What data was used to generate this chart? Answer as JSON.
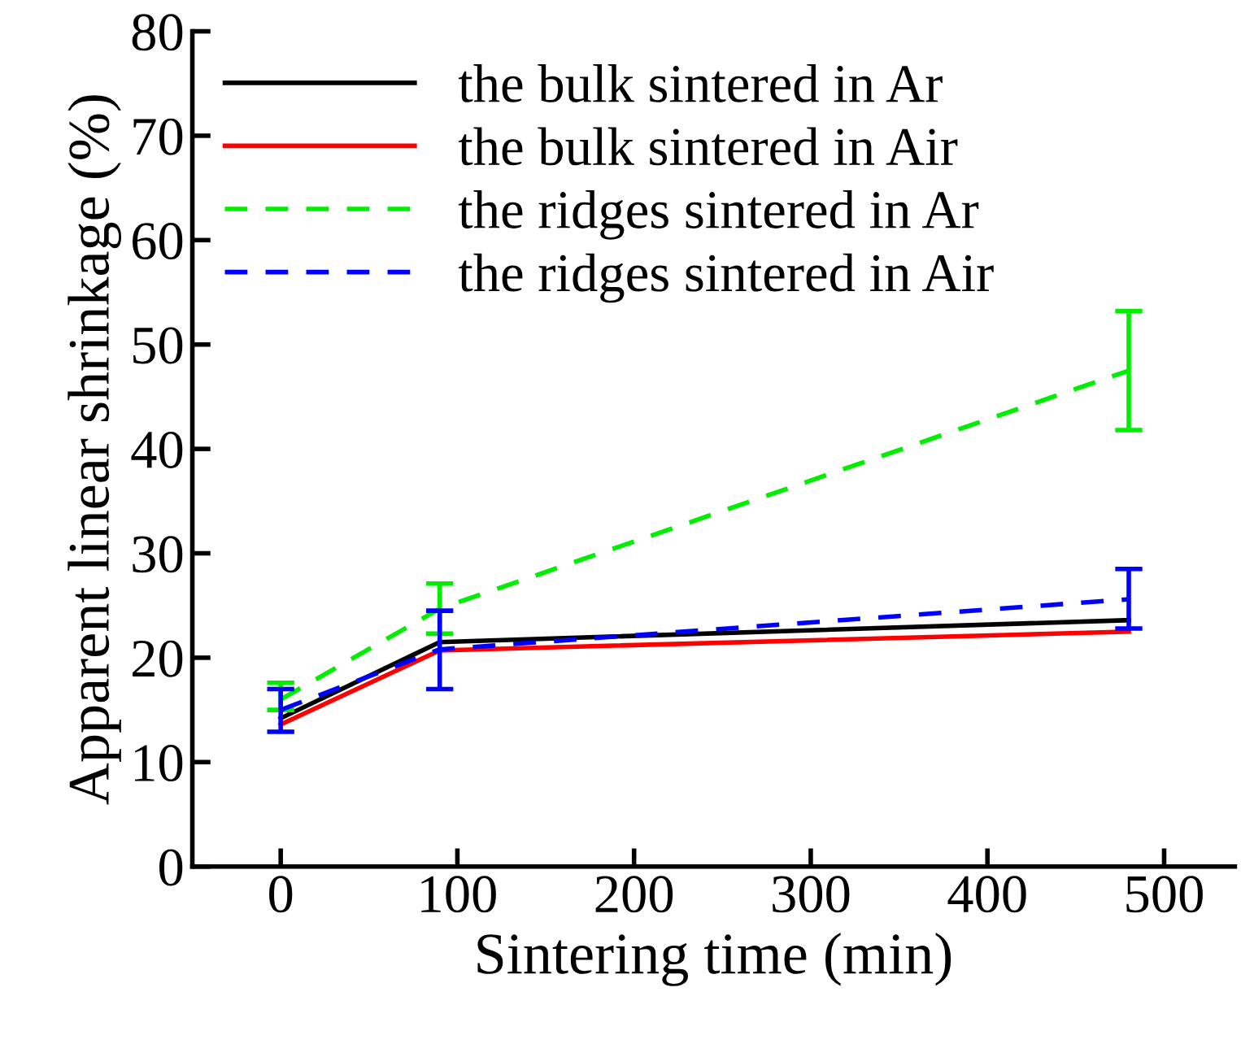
{
  "chart_data": {
    "type": "line",
    "xlabel": "Sintering time (min)",
    "ylabel": "Apparent linear shrinkage (%)",
    "x": [
      0,
      90,
      480
    ],
    "xlim": [
      -50,
      540
    ],
    "ylim": [
      0,
      80
    ],
    "xticks": [
      0,
      100,
      200,
      300,
      400,
      500
    ],
    "yticks": [
      0,
      10,
      20,
      30,
      40,
      50,
      60,
      70,
      80
    ],
    "grid": false,
    "legend": "top left",
    "marker": "none",
    "series": [
      {
        "name": "the bulk sintered in Ar",
        "color": "#000000",
        "line_style": "solid",
        "values": [
          14.2,
          21.5,
          23.6
        ]
      },
      {
        "name": "the bulk sintered in Air",
        "color": "#ff0000",
        "line_style": "solid",
        "values": [
          13.6,
          20.7,
          22.5
        ]
      },
      {
        "name": "the ridges sintered in Ar",
        "color": "#00ee00",
        "line_style": "dashed",
        "values": [
          16.0,
          24.7,
          47.5
        ],
        "errors": [
          [
            15.0,
            17.6
          ],
          [
            22.3,
            27.1
          ],
          [
            41.8,
            53.2
          ]
        ]
      },
      {
        "name": "the ridges sintered in Air",
        "color": "#0000ff",
        "line_style": "dashed",
        "values": [
          15.0,
          20.8,
          25.6
        ],
        "errors": [
          [
            12.9,
            17.0
          ],
          [
            17.0,
            24.5
          ],
          [
            22.8,
            28.5
          ]
        ]
      }
    ]
  }
}
